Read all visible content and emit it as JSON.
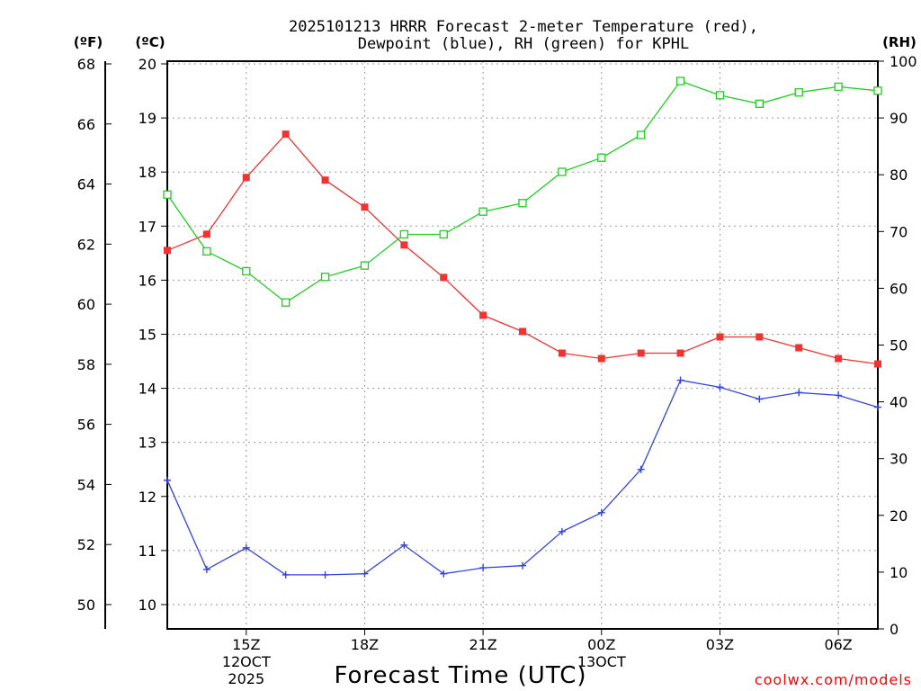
{
  "chart_data": {
    "type": "line",
    "title_lines": [
      "2025101213 HRRR Forecast 2-meter Temperature (red),",
      "Dewpoint (blue), RH (green) for KPHL"
    ],
    "xlabel": "Forecast Time (UTC)",
    "credit": "coolwx.com/models",
    "units": {
      "fahrenheit": "(ºF)",
      "celsius": "(ºC)",
      "rh": "(RH)"
    },
    "x_hours": [
      13,
      14,
      15,
      16,
      17,
      18,
      19,
      20,
      21,
      22,
      23,
      24,
      25,
      26,
      27,
      28,
      29,
      30,
      31
    ],
    "x_range": [
      13,
      31
    ],
    "x_ticks": [
      {
        "hour": 15,
        "lines": [
          "15Z",
          "12OCT",
          "2025"
        ]
      },
      {
        "hour": 18,
        "lines": [
          "18Z"
        ]
      },
      {
        "hour": 21,
        "lines": [
          "21Z"
        ]
      },
      {
        "hour": 24,
        "lines": [
          "00Z",
          "13OCT"
        ]
      },
      {
        "hour": 27,
        "lines": [
          "03Z"
        ]
      },
      {
        "hour": 30,
        "lines": [
          "06Z"
        ]
      }
    ],
    "celsius_axis": {
      "range": [
        9.55,
        20.05
      ],
      "ticks": [
        10,
        11,
        12,
        13,
        14,
        15,
        16,
        17,
        18,
        19,
        20
      ]
    },
    "fahrenheit_ticks": [
      50,
      52,
      54,
      56,
      58,
      60,
      62,
      64,
      66,
      68
    ],
    "rh_axis": {
      "range": [
        0,
        100
      ],
      "ticks": [
        0,
        10,
        20,
        30,
        40,
        50,
        60,
        70,
        80,
        90,
        100
      ]
    },
    "series": [
      {
        "name": "2-meter Temperature",
        "color": "#ee3333",
        "axis": "celsius",
        "marker": "filled-square",
        "values": [
          16.55,
          16.85,
          17.9,
          18.7,
          17.85,
          17.35,
          16.65,
          16.05,
          15.35,
          15.05,
          14.65,
          14.55,
          14.65,
          14.65,
          14.95,
          14.95,
          14.75,
          14.55,
          14.45
        ]
      },
      {
        "name": "Dewpoint",
        "color": "#3344dd",
        "axis": "celsius",
        "marker": "plus",
        "values": [
          12.3,
          10.65,
          11.05,
          10.55,
          10.55,
          10.57,
          11.1,
          10.57,
          10.68,
          10.72,
          11.35,
          11.7,
          12.5,
          14.15,
          14.02,
          13.8,
          13.92,
          13.87,
          13.65
        ]
      },
      {
        "name": "RH",
        "color": "#22cc22",
        "axis": "rh",
        "marker": "open-square",
        "values": [
          76.5,
          66.5,
          63,
          57.5,
          62,
          64,
          69.5,
          69.5,
          73.5,
          75,
          80.5,
          83,
          87,
          96.5,
          94,
          92.5,
          94.5,
          95.5,
          94.8
        ]
      }
    ]
  }
}
